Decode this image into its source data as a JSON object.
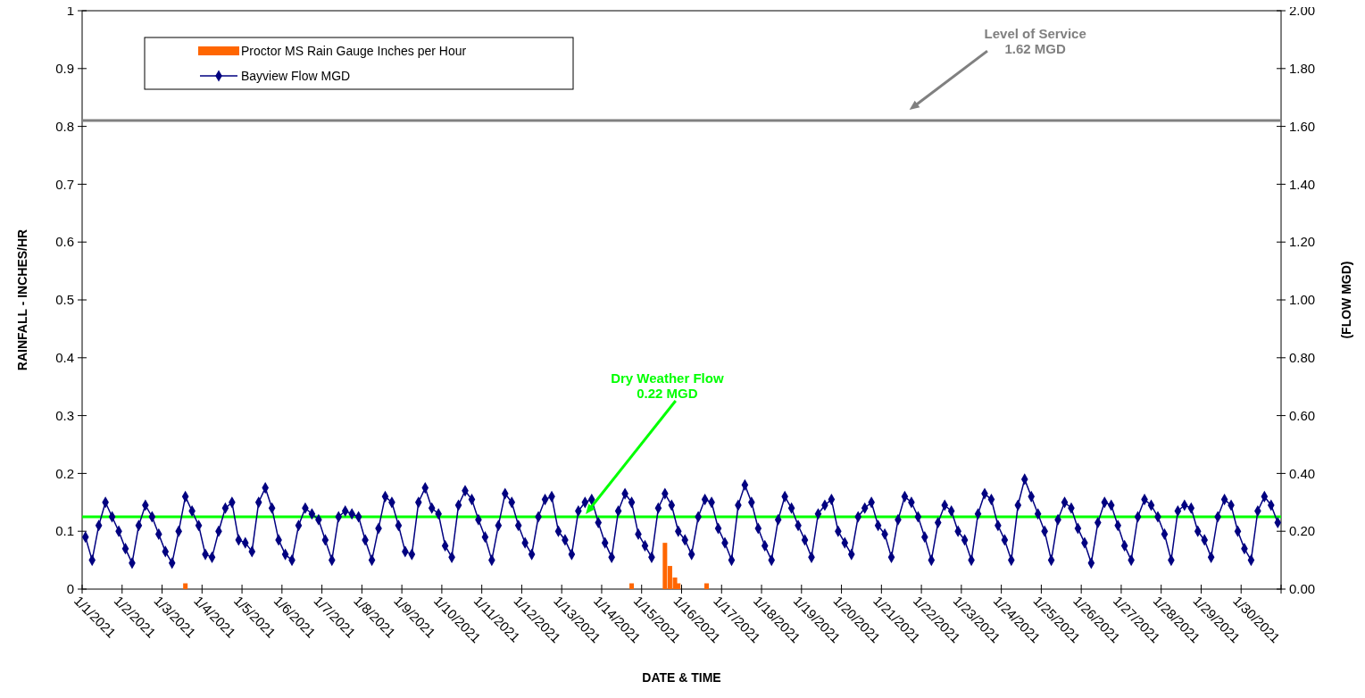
{
  "chart_data": {
    "type": "bar",
    "xlabel": "DATE & TIME",
    "ylabel": "RAINFALL - INCHES/HR",
    "y2label": "(FLOW MGD)",
    "xlim": [
      "2021-01-01",
      "2021-01-31"
    ],
    "xticks": [
      {
        "value": "2021-01-01",
        "label": "1/1/2021"
      },
      {
        "value": "2021-01-02",
        "label": "1/2/2021"
      },
      {
        "value": "2021-01-03",
        "label": "1/3/2021"
      },
      {
        "value": "2021-01-04",
        "label": "1/4/2021"
      },
      {
        "value": "2021-01-05",
        "label": "1/5/2021"
      },
      {
        "value": "2021-01-06",
        "label": "1/6/2021"
      },
      {
        "value": "2021-01-07",
        "label": "1/7/2021"
      },
      {
        "value": "2021-01-08",
        "label": "1/8/2021"
      },
      {
        "value": "2021-01-09",
        "label": "1/9/2021"
      },
      {
        "value": "2021-01-10",
        "label": "1/10/2021"
      },
      {
        "value": "2021-01-11",
        "label": "1/11/2021"
      },
      {
        "value": "2021-01-12",
        "label": "1/12/2021"
      },
      {
        "value": "2021-01-13",
        "label": "1/13/2021"
      },
      {
        "value": "2021-01-14",
        "label": "1/14/2021"
      },
      {
        "value": "2021-01-15",
        "label": "1/15/2021"
      },
      {
        "value": "2021-01-16",
        "label": "1/16/2021"
      },
      {
        "value": "2021-01-17",
        "label": "1/17/2021"
      },
      {
        "value": "2021-01-18",
        "label": "1/18/2021"
      },
      {
        "value": "2021-01-19",
        "label": "1/19/2021"
      },
      {
        "value": "2021-01-20",
        "label": "1/20/2021"
      },
      {
        "value": "2021-01-21",
        "label": "1/21/2021"
      },
      {
        "value": "2021-01-22",
        "label": "1/22/2021"
      },
      {
        "value": "2021-01-23",
        "label": "1/23/2021"
      },
      {
        "value": "2021-01-24",
        "label": "1/24/2021"
      },
      {
        "value": "2021-01-25",
        "label": "1/25/2021"
      },
      {
        "value": "2021-01-26",
        "label": "1/26/2021"
      },
      {
        "value": "2021-01-27",
        "label": "1/27/2021"
      },
      {
        "value": "2021-01-28",
        "label": "1/28/2021"
      },
      {
        "value": "2021-01-29",
        "label": "1/29/2021"
      },
      {
        "value": "2021-01-30",
        "label": "1/30/2021"
      },
      {
        "value": "2021-01-31",
        "label": null
      }
    ],
    "ylim": [
      0,
      1
    ],
    "yticks": [
      0,
      0.1,
      0.2,
      0.3,
      0.4,
      0.5,
      0.6,
      0.7,
      0.8,
      0.9,
      1
    ],
    "y2lim": [
      0,
      2
    ],
    "y2ticks": [
      {
        "value": 0,
        "label": "0.00"
      },
      {
        "value": 0.2,
        "label": "0.20"
      },
      {
        "value": 0.4,
        "label": "0.40"
      },
      {
        "value": 0.6,
        "label": "0.60"
      },
      {
        "value": 0.8,
        "label": "0.80"
      },
      {
        "value": 1,
        "label": "1.00"
      },
      {
        "value": 1.2,
        "label": "1.20"
      },
      {
        "value": 1.4,
        "label": "1.40"
      },
      {
        "value": 1.6,
        "label": "1.60"
      },
      {
        "value": 1.8,
        "label": "1.80"
      },
      {
        "value": 2,
        "label": "2.00"
      }
    ],
    "legend": "top left",
    "grid": false,
    "series": [
      {
        "name": "Proctor MS Rain Gauge Inches per Hour",
        "color": "#ff6600",
        "x": [
          "2021-01-03T14:00",
          "2021-01-14T18:00",
          "2021-01-15T14:00",
          "2021-01-15T17:00",
          "2021-01-15T20:00",
          "2021-01-15T22:00",
          "2021-01-16T15:00"
        ],
        "values": [
          0.01,
          0.01,
          0.08,
          0.04,
          0.02,
          0.01,
          0.01
        ]
      },
      {
        "name": "Bayview Flow MGD",
        "type": "line",
        "axis": "y2",
        "color": "#000080",
        "marker": "diamond",
        "line_style": "solid",
        "x": [
          "2021-01-01T02:00",
          "2021-01-01T06:00",
          "2021-01-01T10:00",
          "2021-01-01T14:00",
          "2021-01-01T18:00",
          "2021-01-01T22:00",
          "2021-01-02T02:00",
          "2021-01-02T06:00",
          "2021-01-02T10:00",
          "2021-01-02T14:00",
          "2021-01-02T18:00",
          "2021-01-02T22:00",
          "2021-01-03T02:00",
          "2021-01-03T06:00",
          "2021-01-03T10:00",
          "2021-01-03T14:00",
          "2021-01-03T18:00",
          "2021-01-03T22:00",
          "2021-01-04T02:00",
          "2021-01-04T06:00",
          "2021-01-04T10:00",
          "2021-01-04T14:00",
          "2021-01-04T18:00",
          "2021-01-04T22:00",
          "2021-01-05T02:00",
          "2021-01-05T06:00",
          "2021-01-05T10:00",
          "2021-01-05T14:00",
          "2021-01-05T18:00",
          "2021-01-05T22:00",
          "2021-01-06T02:00",
          "2021-01-06T06:00",
          "2021-01-06T10:00",
          "2021-01-06T14:00",
          "2021-01-06T18:00",
          "2021-01-06T22:00",
          "2021-01-07T02:00",
          "2021-01-07T06:00",
          "2021-01-07T10:00",
          "2021-01-07T14:00",
          "2021-01-07T18:00",
          "2021-01-07T22:00",
          "2021-01-08T02:00",
          "2021-01-08T06:00",
          "2021-01-08T10:00",
          "2021-01-08T14:00",
          "2021-01-08T18:00",
          "2021-01-08T22:00",
          "2021-01-09T02:00",
          "2021-01-09T06:00",
          "2021-01-09T10:00",
          "2021-01-09T14:00",
          "2021-01-09T18:00",
          "2021-01-09T22:00",
          "2021-01-10T02:00",
          "2021-01-10T06:00",
          "2021-01-10T10:00",
          "2021-01-10T14:00",
          "2021-01-10T18:00",
          "2021-01-10T22:00",
          "2021-01-11T02:00",
          "2021-01-11T06:00",
          "2021-01-11T10:00",
          "2021-01-11T14:00",
          "2021-01-11T18:00",
          "2021-01-11T22:00",
          "2021-01-12T02:00",
          "2021-01-12T06:00",
          "2021-01-12T10:00",
          "2021-01-12T14:00",
          "2021-01-12T18:00",
          "2021-01-12T22:00",
          "2021-01-13T02:00",
          "2021-01-13T06:00",
          "2021-01-13T10:00",
          "2021-01-13T14:00",
          "2021-01-13T18:00",
          "2021-01-13T22:00",
          "2021-01-14T02:00",
          "2021-01-14T06:00",
          "2021-01-14T10:00",
          "2021-01-14T14:00",
          "2021-01-14T18:00",
          "2021-01-14T22:00",
          "2021-01-15T02:00",
          "2021-01-15T06:00",
          "2021-01-15T10:00",
          "2021-01-15T14:00",
          "2021-01-15T18:00",
          "2021-01-15T22:00",
          "2021-01-16T02:00",
          "2021-01-16T06:00",
          "2021-01-16T10:00",
          "2021-01-16T14:00",
          "2021-01-16T18:00",
          "2021-01-16T22:00",
          "2021-01-17T02:00",
          "2021-01-17T06:00",
          "2021-01-17T10:00",
          "2021-01-17T14:00",
          "2021-01-17T18:00",
          "2021-01-17T22:00",
          "2021-01-18T02:00",
          "2021-01-18T06:00",
          "2021-01-18T10:00",
          "2021-01-18T14:00",
          "2021-01-18T18:00",
          "2021-01-18T22:00",
          "2021-01-19T02:00",
          "2021-01-19T06:00",
          "2021-01-19T10:00",
          "2021-01-19T14:00",
          "2021-01-19T18:00",
          "2021-01-19T22:00",
          "2021-01-20T02:00",
          "2021-01-20T06:00",
          "2021-01-20T10:00",
          "2021-01-20T14:00",
          "2021-01-20T18:00",
          "2021-01-20T22:00",
          "2021-01-21T02:00",
          "2021-01-21T06:00",
          "2021-01-21T10:00",
          "2021-01-21T14:00",
          "2021-01-21T18:00",
          "2021-01-21T22:00",
          "2021-01-22T02:00",
          "2021-01-22T06:00",
          "2021-01-22T10:00",
          "2021-01-22T14:00",
          "2021-01-22T18:00",
          "2021-01-22T22:00",
          "2021-01-23T02:00",
          "2021-01-23T06:00",
          "2021-01-23T10:00",
          "2021-01-23T14:00",
          "2021-01-23T18:00",
          "2021-01-23T22:00",
          "2021-01-24T02:00",
          "2021-01-24T06:00",
          "2021-01-24T10:00",
          "2021-01-24T14:00",
          "2021-01-24T18:00",
          "2021-01-24T22:00",
          "2021-01-25T02:00",
          "2021-01-25T06:00",
          "2021-01-25T10:00",
          "2021-01-25T14:00",
          "2021-01-25T18:00",
          "2021-01-25T22:00",
          "2021-01-26T02:00",
          "2021-01-26T06:00",
          "2021-01-26T10:00",
          "2021-01-26T14:00",
          "2021-01-26T18:00",
          "2021-01-26T22:00",
          "2021-01-27T02:00",
          "2021-01-27T06:00",
          "2021-01-27T10:00",
          "2021-01-27T14:00",
          "2021-01-27T18:00",
          "2021-01-27T22:00",
          "2021-01-28T02:00",
          "2021-01-28T06:00",
          "2021-01-28T10:00",
          "2021-01-28T14:00",
          "2021-01-28T18:00",
          "2021-01-28T22:00",
          "2021-01-29T02:00",
          "2021-01-29T06:00",
          "2021-01-29T10:00",
          "2021-01-29T14:00",
          "2021-01-29T18:00",
          "2021-01-29T22:00",
          "2021-01-30T02:00",
          "2021-01-30T06:00",
          "2021-01-30T10:00",
          "2021-01-30T14:00",
          "2021-01-30T18:00",
          "2021-01-30T22:00"
        ],
        "values": [
          0.18,
          0.1,
          0.22,
          0.3,
          0.25,
          0.2,
          0.14,
          0.09,
          0.22,
          0.29,
          0.25,
          0.19,
          0.13,
          0.09,
          0.2,
          0.32,
          0.27,
          0.22,
          0.12,
          0.11,
          0.2,
          0.28,
          0.3,
          0.17,
          0.16,
          0.13,
          0.3,
          0.35,
          0.28,
          0.17,
          0.12,
          0.1,
          0.22,
          0.28,
          0.26,
          0.24,
          0.17,
          0.1,
          0.25,
          0.27,
          0.26,
          0.25,
          0.17,
          0.1,
          0.21,
          0.32,
          0.3,
          0.22,
          0.13,
          0.12,
          0.3,
          0.35,
          0.28,
          0.26,
          0.15,
          0.11,
          0.29,
          0.34,
          0.31,
          0.24,
          0.18,
          0.1,
          0.22,
          0.33,
          0.3,
          0.22,
          0.16,
          0.12,
          0.25,
          0.31,
          0.32,
          0.2,
          0.17,
          0.12,
          0.27,
          0.3,
          0.31,
          0.23,
          0.16,
          0.11,
          0.27,
          0.33,
          0.3,
          0.19,
          0.15,
          0.11,
          0.28,
          0.33,
          0.29,
          0.2,
          0.17,
          0.12,
          0.25,
          0.31,
          0.3,
          0.21,
          0.16,
          0.1,
          0.29,
          0.36,
          0.3,
          0.21,
          0.15,
          0.1,
          0.24,
          0.32,
          0.28,
          0.22,
          0.17,
          0.11,
          0.26,
          0.29,
          0.31,
          0.2,
          0.16,
          0.12,
          0.25,
          0.28,
          0.3,
          0.22,
          0.19,
          0.11,
          0.24,
          0.32,
          0.3,
          0.25,
          0.18,
          0.1,
          0.23,
          0.29,
          0.27,
          0.2,
          0.17,
          0.1,
          0.26,
          0.33,
          0.31,
          0.22,
          0.17,
          0.1,
          0.29,
          0.38,
          0.32,
          0.26,
          0.2,
          0.1,
          0.24,
          0.3,
          0.28,
          0.21,
          0.16,
          0.09,
          0.23,
          0.3,
          0.29,
          0.22,
          0.15,
          0.1,
          0.25,
          0.31,
          0.29,
          0.25,
          0.19,
          0.1,
          0.27,
          0.29,
          0.28,
          0.2,
          0.17,
          0.11,
          0.25,
          0.31,
          0.29,
          0.2,
          0.14,
          0.1,
          0.27,
          0.32,
          0.29,
          0.23
        ]
      }
    ],
    "ref_lines": [
      {
        "axis": "y2",
        "value": 1.62,
        "color": "#808080"
      },
      {
        "axis": "y2",
        "value": 0.25,
        "color": "#00ff00"
      }
    ],
    "annotations": [
      "Level of Service\n1.62 MGD",
      "Dry Weather Flow\n0.22 MGD"
    ]
  }
}
